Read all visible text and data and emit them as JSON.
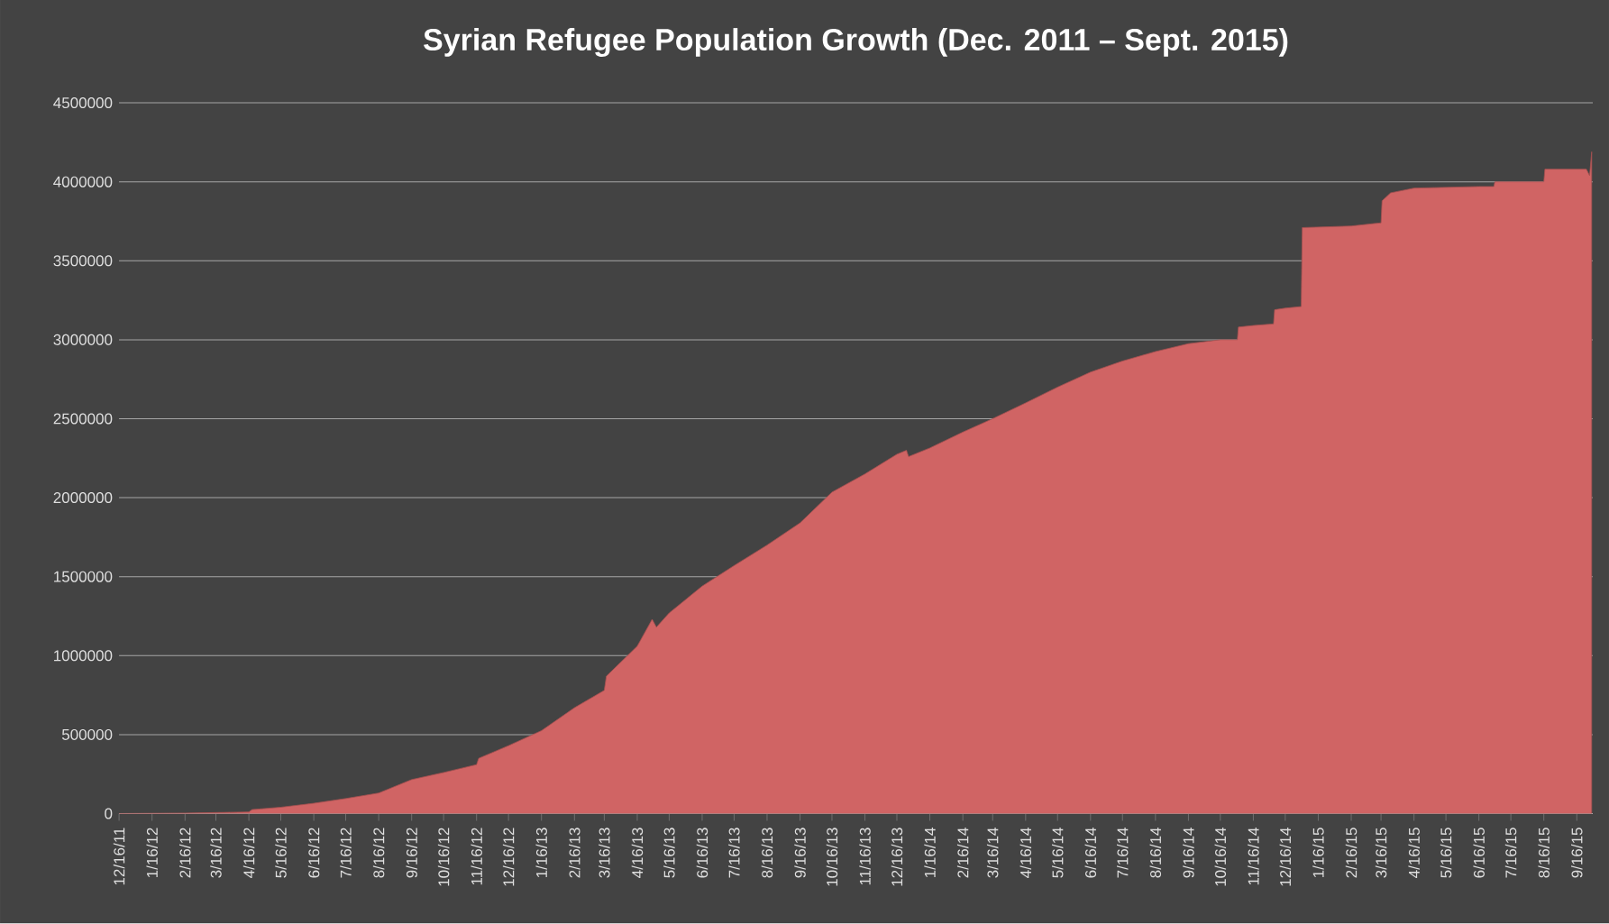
{
  "chart_data": {
    "type": "area",
    "title": "Syrian Refugee Population Growth (Dec. 2011 – Sept. 2015)",
    "color": "#d06464",
    "grid": "y",
    "marker": "none",
    "x": [
      "2011-12-16",
      "2012-02-16",
      "2012-04-16",
      "2012-04-19",
      "2012-05-16",
      "2012-06-16",
      "2012-07-16",
      "2012-08-16",
      "2012-09-16",
      "2012-10-16",
      "2012-11-16",
      "2012-11-18",
      "2012-12-16",
      "2013-01-16",
      "2013-02-16",
      "2013-03-16",
      "2013-03-18",
      "2013-04-16",
      "2013-04-30",
      "2013-05-04",
      "2013-05-16",
      "2013-06-16",
      "2013-07-16",
      "2013-08-16",
      "2013-09-16",
      "2013-10-16",
      "2013-11-16",
      "2013-12-16",
      "2013-12-25",
      "2013-12-27",
      "2014-01-16",
      "2014-02-16",
      "2014-03-16",
      "2014-04-16",
      "2014-05-16",
      "2014-06-16",
      "2014-07-16",
      "2014-08-16",
      "2014-09-16",
      "2014-10-16",
      "2014-11-01",
      "2014-11-02",
      "2014-11-16",
      "2014-12-05",
      "2014-12-06",
      "2014-12-16",
      "2014-12-31",
      "2015-01-01",
      "2015-02-16",
      "2015-03-16",
      "2015-03-17",
      "2015-03-25",
      "2015-04-16",
      "2015-06-16",
      "2015-06-30",
      "2015-07-01",
      "2015-08-16",
      "2015-08-17",
      "2015-09-25",
      "2015-09-28",
      "2015-09-30"
    ],
    "values": [
      0,
      3000,
      10000,
      25000,
      40000,
      65000,
      95000,
      130000,
      215000,
      260000,
      310000,
      350000,
      430000,
      525000,
      670000,
      780000,
      870000,
      1060000,
      1230000,
      1180000,
      1270000,
      1440000,
      1570000,
      1700000,
      1840000,
      2035000,
      2150000,
      2275000,
      2300000,
      2260000,
      2315000,
      2415000,
      2500000,
      2600000,
      2700000,
      2795000,
      2865000,
      2925000,
      2975000,
      3000000,
      3000000,
      3080000,
      3090000,
      3100000,
      3190000,
      3200000,
      3210000,
      3710000,
      3720000,
      3740000,
      3880000,
      3930000,
      3960000,
      3970000,
      3970000,
      4000000,
      4000000,
      4080000,
      4080000,
      4040000,
      4190000
    ],
    "xlim": [
      "2011-12-16",
      "2015-10-01"
    ],
    "ylim": [
      0,
      4500000
    ],
    "yticks": [
      {
        "value": 0,
        "label": "0"
      },
      {
        "value": 500000,
        "label": "500000"
      },
      {
        "value": 1000000,
        "label": "1000000"
      },
      {
        "value": 1500000,
        "label": "1500000"
      },
      {
        "value": 2000000,
        "label": "2000000"
      },
      {
        "value": 2500000,
        "label": "2500000"
      },
      {
        "value": 3000000,
        "label": "3000000"
      },
      {
        "value": 3500000,
        "label": "3500000"
      },
      {
        "value": 4000000,
        "label": "4000000"
      },
      {
        "value": 4500000,
        "label": "4500000"
      }
    ],
    "xticks": [
      {
        "value": "2011-12-16",
        "label": "12/16/11"
      },
      {
        "value": "2012-01-16",
        "label": "1/16/12"
      },
      {
        "value": "2012-02-16",
        "label": "2/16/12"
      },
      {
        "value": "2012-03-16",
        "label": "3/16/12"
      },
      {
        "value": "2012-04-16",
        "label": "4/16/12"
      },
      {
        "value": "2012-05-16",
        "label": "5/16/12"
      },
      {
        "value": "2012-06-16",
        "label": "6/16/12"
      },
      {
        "value": "2012-07-16",
        "label": "7/16/12"
      },
      {
        "value": "2012-08-16",
        "label": "8/16/12"
      },
      {
        "value": "2012-09-16",
        "label": "9/16/12"
      },
      {
        "value": "2012-10-16",
        "label": "10/16/12"
      },
      {
        "value": "2012-11-16",
        "label": "11/16/12"
      },
      {
        "value": "2012-12-16",
        "label": "12/16/12"
      },
      {
        "value": "2013-01-16",
        "label": "1/16/13"
      },
      {
        "value": "2013-02-16",
        "label": "2/16/13"
      },
      {
        "value": "2013-03-16",
        "label": "3/16/13"
      },
      {
        "value": "2013-04-16",
        "label": "4/16/13"
      },
      {
        "value": "2013-05-16",
        "label": "5/16/13"
      },
      {
        "value": "2013-06-16",
        "label": "6/16/13"
      },
      {
        "value": "2013-07-16",
        "label": "7/16/13"
      },
      {
        "value": "2013-08-16",
        "label": "8/16/13"
      },
      {
        "value": "2013-09-16",
        "label": "9/16/13"
      },
      {
        "value": "2013-10-16",
        "label": "10/16/13"
      },
      {
        "value": "2013-11-16",
        "label": "11/16/13"
      },
      {
        "value": "2013-12-16",
        "label": "12/16/13"
      },
      {
        "value": "2014-01-16",
        "label": "1/16/14"
      },
      {
        "value": "2014-02-16",
        "label": "2/16/14"
      },
      {
        "value": "2014-03-16",
        "label": "3/16/14"
      },
      {
        "value": "2014-04-16",
        "label": "4/16/14"
      },
      {
        "value": "2014-05-16",
        "label": "5/16/14"
      },
      {
        "value": "2014-06-16",
        "label": "6/16/14"
      },
      {
        "value": "2014-07-16",
        "label": "7/16/14"
      },
      {
        "value": "2014-08-16",
        "label": "8/16/14"
      },
      {
        "value": "2014-09-16",
        "label": "9/16/14"
      },
      {
        "value": "2014-10-16",
        "label": "10/16/14"
      },
      {
        "value": "2014-11-16",
        "label": "11/16/14"
      },
      {
        "value": "2014-12-16",
        "label": "12/16/14"
      },
      {
        "value": "2015-01-16",
        "label": "1/16/15"
      },
      {
        "value": "2015-02-16",
        "label": "2/16/15"
      },
      {
        "value": "2015-03-16",
        "label": "3/16/15"
      },
      {
        "value": "2015-04-16",
        "label": "4/16/15"
      },
      {
        "value": "2015-05-16",
        "label": "5/16/15"
      },
      {
        "value": "2015-06-16",
        "label": "6/16/15"
      },
      {
        "value": "2015-07-16",
        "label": "7/16/15"
      },
      {
        "value": "2015-08-16",
        "label": "8/16/15"
      },
      {
        "value": "2015-09-16",
        "label": "9/16/15"
      }
    ]
  }
}
